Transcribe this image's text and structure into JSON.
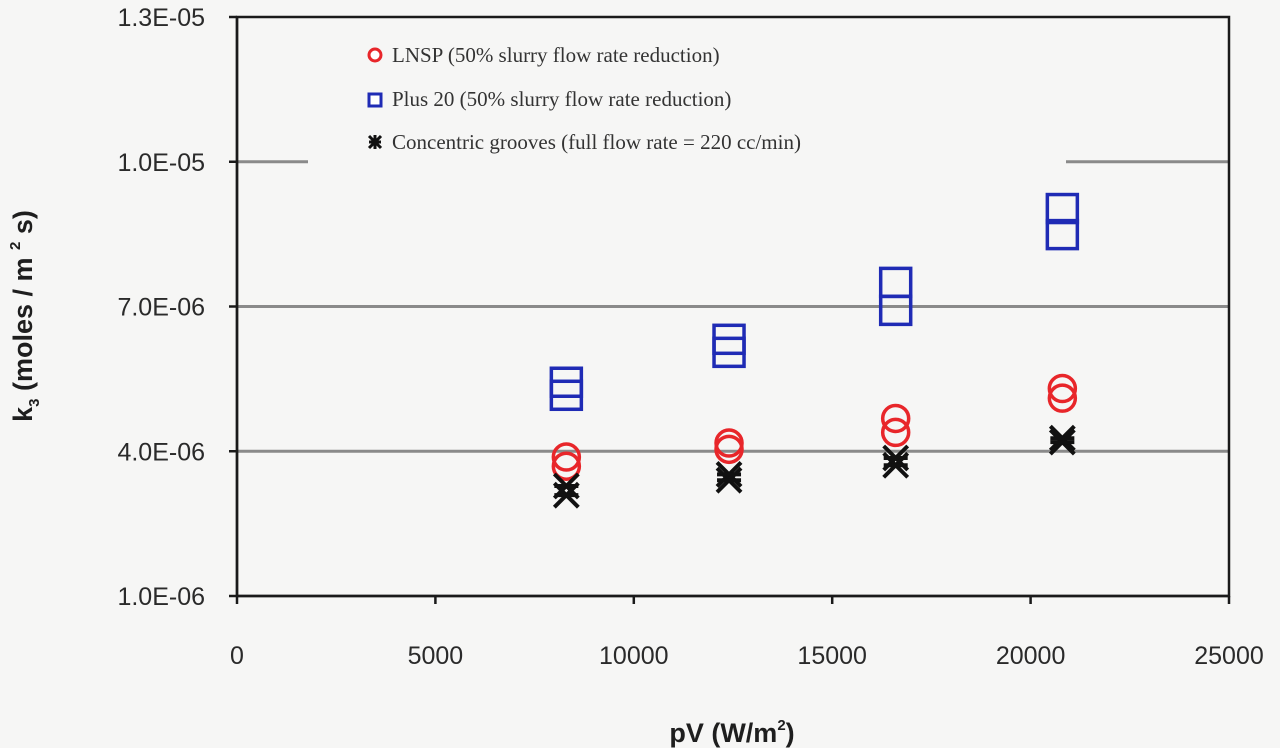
{
  "chart_data": {
    "type": "scatter",
    "title": "",
    "xlabel": "pV (W/m²)",
    "xlabel_parts": {
      "main": "pV (W/m",
      "sup": "2",
      "close": ")"
    },
    "ylabel": "k3 (moles / m² s)",
    "ylabel_parts": {
      "k": "k",
      "sub": "3",
      "main": " (moles / m ",
      "sup": "2",
      "close": " s)"
    },
    "xlim": [
      0,
      25000
    ],
    "ylim": [
      1e-06,
      1.3e-05
    ],
    "x_ticks": [
      0,
      5000,
      10000,
      15000,
      20000,
      25000
    ],
    "x_tick_labels": [
      "0",
      "5000",
      "10000",
      "15000",
      "20000",
      "25000"
    ],
    "y_ticks": [
      1e-06,
      4e-06,
      7e-06,
      1e-05,
      1.3e-05
    ],
    "y_tick_labels": [
      "1.0E-06",
      "4.0E-06",
      "7.0E-06",
      "1.0E-05",
      "1.3E-05"
    ],
    "grid": {
      "horizontal": true,
      "vertical": false,
      "values": [
        4e-06,
        7e-06,
        1e-05
      ]
    },
    "legend_position": "top-inside",
    "series": [
      {
        "name": "LNSP (50% slurry flow rate reduction)",
        "marker": "circle",
        "color": "#e8262a",
        "points": [
          [
            8300,
            3.88e-06
          ],
          [
            8300,
            3.69e-06
          ],
          [
            12400,
            4.17e-06
          ],
          [
            12400,
            4.04e-06
          ],
          [
            16600,
            4.68e-06
          ],
          [
            16600,
            4.39e-06
          ],
          [
            20800,
            5.3e-06
          ],
          [
            20800,
            5.1e-06
          ]
        ]
      },
      {
        "name": "Plus 20 (50% slurry flow rate reduction)",
        "marker": "square",
        "color": "#1f2bb5",
        "points": [
          [
            8300,
            5.43e-06
          ],
          [
            8300,
            5.16e-06
          ],
          [
            12400,
            6.32e-06
          ],
          [
            12400,
            6.05e-06
          ],
          [
            16600,
            7.5e-06
          ],
          [
            16600,
            6.92e-06
          ],
          [
            20800,
            9.03e-06
          ],
          [
            20800,
            8.49e-06
          ]
        ]
      },
      {
        "name": "Concentric grooves (full flow rate = 220 cc/min)",
        "marker": "star",
        "color": "#111111",
        "points": [
          [
            8300,
            3.28e-06
          ],
          [
            8300,
            3.09e-06
          ],
          [
            12400,
            3.52e-06
          ],
          [
            12400,
            3.4e-06
          ],
          [
            16600,
            3.86e-06
          ],
          [
            16600,
            3.71e-06
          ],
          [
            20800,
            4.27e-06
          ],
          [
            20800,
            4.19e-06
          ]
        ]
      }
    ]
  },
  "legend": {
    "items": [
      {
        "label": "LNSP (50% slurry flow rate reduction)",
        "icon": "circle-marker-icon"
      },
      {
        "label": "Plus 20 (50% slurry flow rate reduction)",
        "icon": "square-marker-icon"
      },
      {
        "label": "Concentric grooves (full flow rate = 220 cc/min)",
        "icon": "star-marker-icon"
      }
    ]
  },
  "colors": {
    "background": "#f6f6f5",
    "axis": "#1a1a1a",
    "grid": "#8a8a8a"
  }
}
